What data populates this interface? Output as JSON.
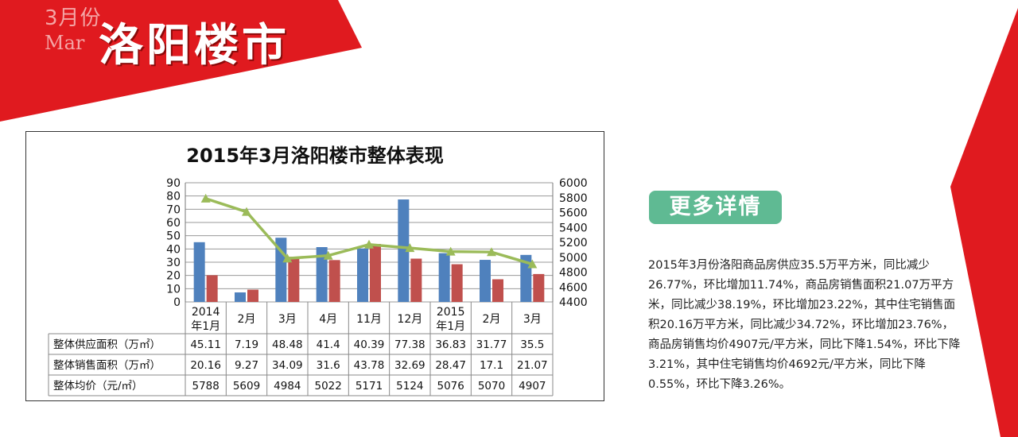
{
  "header": {
    "month_cn": "3月份",
    "month_en": "Mar",
    "title": "洛阳楼市"
  },
  "colors": {
    "banner_red": "#e01a1f",
    "supply_blue": "#4f81bd",
    "sales_red": "#c0504d",
    "price_green": "#9bbb59",
    "button_green": "#5fba93"
  },
  "chart_data": {
    "type": "bar",
    "title": "2015年3月洛阳楼市整体表现",
    "categories": [
      "2014\n年1月",
      "2月",
      "3月",
      "4月",
      "11月",
      "12月",
      "2015\n年1月",
      "2月",
      "3月"
    ],
    "series": [
      {
        "name": "整体供应面积（万㎡）",
        "type": "bar",
        "axis": "left",
        "values": [
          45.11,
          7.19,
          48.48,
          41.4,
          40.39,
          77.38,
          36.83,
          31.77,
          35.5
        ]
      },
      {
        "name": "整体销售面积（万㎡）",
        "type": "bar",
        "axis": "left",
        "values": [
          20.16,
          9.27,
          34.09,
          31.6,
          43.78,
          32.69,
          28.47,
          17.1,
          21.07
        ]
      },
      {
        "name": "整体均价（元/㎡）",
        "type": "line",
        "axis": "right",
        "values": [
          5788,
          5609,
          4984,
          5022,
          5171,
          5124,
          5076,
          5070,
          4907
        ]
      }
    ],
    "ylim_left": [
      0,
      90
    ],
    "yticks_left": [
      0,
      10,
      20,
      30,
      40,
      50,
      60,
      70,
      80,
      90
    ],
    "ylim_right": [
      4400,
      6000
    ],
    "yticks_right": [
      4400,
      4600,
      4800,
      5000,
      5200,
      5400,
      5600,
      5800,
      6000
    ],
    "legend": "data-table-below",
    "grid": true
  },
  "cta": {
    "label": "更多详情"
  },
  "description": "2015年3月份洛阳商品房供应35.5万平方米，同比减少26.77%，环比增加11.74%，商品房销售面积21.07万平方米，同比减少38.19%，环比增加23.22%，其中住宅销售面积20.16万平方米，同比减少34.72%，环比增加23.76%，商品房销售均价4907元/平方米，同比下降1.54%，环比下降3.21%，其中住宅销售均价4692元/平方米，同比下降0.55%，环比下降3.26%。"
}
